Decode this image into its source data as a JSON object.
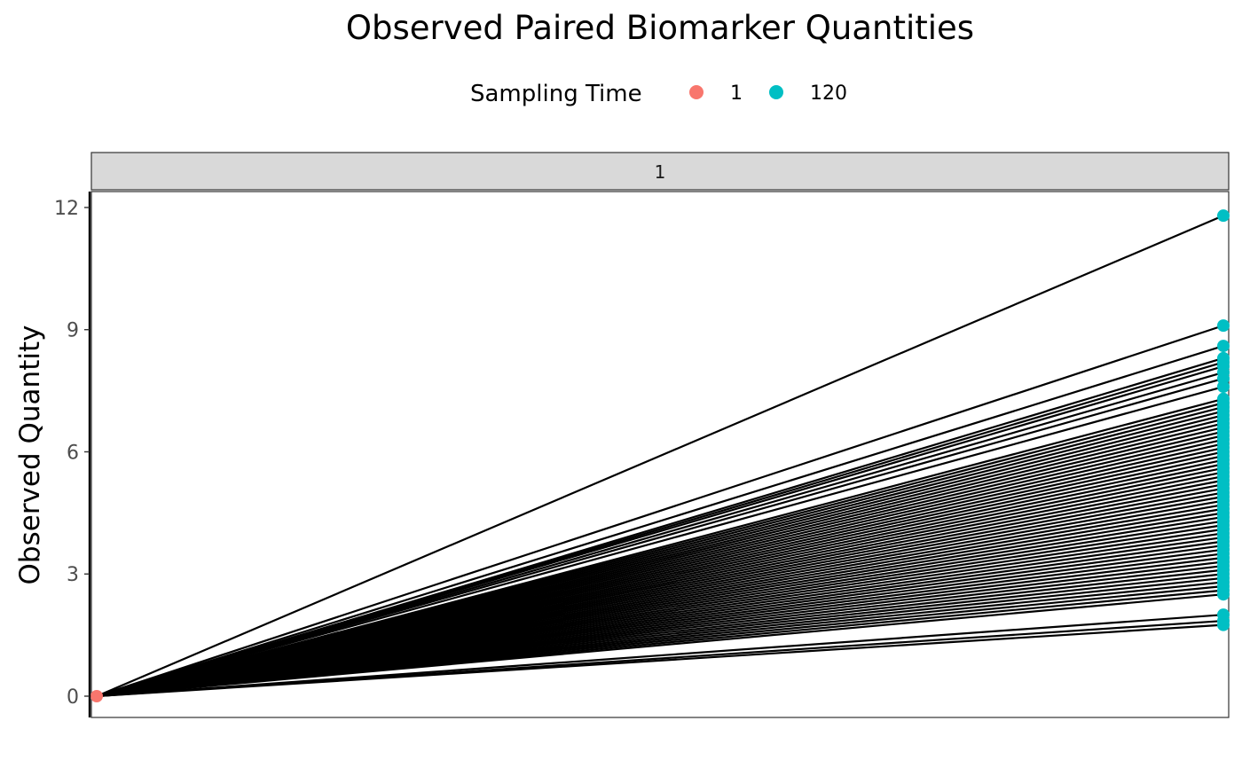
{
  "chart_data": {
    "type": "line",
    "title": "Observed Paired Biomarker Quantities",
    "xlabel": "",
    "ylabel": "Observed Quantity",
    "facet_label": "1",
    "legend": {
      "title": "Sampling Time",
      "position": "top",
      "entries": [
        {
          "label": "1",
          "color": "#F8766D"
        },
        {
          "label": "120",
          "color": "#00BFC4"
        }
      ]
    },
    "x": [
      1,
      120
    ],
    "ylim": [
      -0.5,
      12.4
    ],
    "yticks": [
      0,
      3,
      6,
      9,
      12
    ],
    "ytick_labels": [
      "0",
      "3",
      "6",
      "9",
      "12"
    ],
    "line_color": "#000000",
    "start_value": 0,
    "end_values": [
      11.8,
      9.1,
      8.6,
      8.3,
      8.2,
      8.1,
      7.95,
      7.8,
      7.6,
      7.3,
      7.2,
      7.1,
      7.0,
      6.9,
      6.8,
      6.7,
      6.6,
      6.5,
      6.4,
      6.3,
      6.2,
      6.1,
      6.0,
      5.9,
      5.8,
      5.7,
      5.6,
      5.5,
      5.4,
      5.3,
      5.2,
      5.1,
      5.0,
      4.9,
      4.8,
      4.7,
      4.6,
      4.5,
      4.4,
      4.3,
      4.2,
      4.1,
      4.0,
      3.9,
      3.8,
      3.7,
      3.6,
      3.5,
      3.4,
      3.3,
      3.2,
      3.1,
      3.0,
      2.9,
      2.8,
      2.7,
      2.6,
      2.5,
      2.0,
      1.85,
      1.75
    ]
  }
}
